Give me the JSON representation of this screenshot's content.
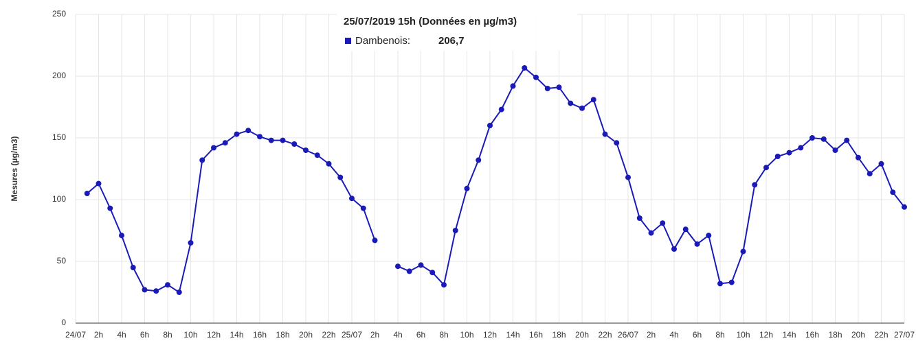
{
  "chart_data": {
    "type": "line",
    "y_label": "Mesures (µg/m3)",
    "x": [
      1,
      2,
      3,
      4,
      5,
      6,
      7,
      8,
      9,
      10,
      11,
      12,
      13,
      14,
      15,
      16,
      17,
      18,
      19,
      20,
      21,
      22,
      23,
      24,
      25,
      26,
      27,
      28,
      29,
      30,
      31,
      32,
      33,
      34,
      35,
      36,
      37,
      38,
      39,
      40,
      41,
      42,
      43,
      44,
      45,
      46,
      47,
      48,
      49,
      50,
      51,
      52,
      53,
      54,
      55,
      56,
      57,
      58,
      59,
      60,
      61,
      62,
      63,
      64,
      65,
      66,
      67,
      68,
      69,
      70,
      71,
      72
    ],
    "series": [
      {
        "name": "Dambenois",
        "color": "#1a1ab8",
        "values": [
          105,
          113,
          93,
          71,
          45,
          27,
          26,
          31,
          25,
          65,
          132,
          142,
          146,
          153,
          156,
          151,
          148,
          148,
          145,
          140,
          136,
          129,
          118,
          101,
          93,
          67,
          null,
          46,
          42,
          47,
          41,
          31,
          75,
          109,
          132,
          160,
          173,
          192,
          206.7,
          199,
          190,
          191,
          178,
          174,
          181,
          153,
          146,
          118,
          85,
          73,
          81,
          60,
          76,
          64,
          71,
          32,
          33,
          58,
          112,
          126,
          135,
          138,
          142,
          150,
          149,
          140,
          148,
          134,
          121,
          129,
          106,
          94
        ]
      }
    ],
    "xlim": [
      0,
      72
    ],
    "xticks": [
      {
        "value": 0,
        "label": "24/07"
      },
      {
        "value": 2,
        "label": "2h"
      },
      {
        "value": 4,
        "label": "4h"
      },
      {
        "value": 6,
        "label": "6h"
      },
      {
        "value": 8,
        "label": "8h"
      },
      {
        "value": 10,
        "label": "10h"
      },
      {
        "value": 12,
        "label": "12h"
      },
      {
        "value": 14,
        "label": "14h"
      },
      {
        "value": 16,
        "label": "16h"
      },
      {
        "value": 18,
        "label": "18h"
      },
      {
        "value": 20,
        "label": "20h"
      },
      {
        "value": 22,
        "label": "22h"
      },
      {
        "value": 24,
        "label": "25/07"
      },
      {
        "value": 26,
        "label": "2h"
      },
      {
        "value": 28,
        "label": "4h"
      },
      {
        "value": 30,
        "label": "6h"
      },
      {
        "value": 32,
        "label": "8h"
      },
      {
        "value": 34,
        "label": "10h"
      },
      {
        "value": 36,
        "label": "12h"
      },
      {
        "value": 38,
        "label": "14h"
      },
      {
        "value": 40,
        "label": "16h"
      },
      {
        "value": 42,
        "label": "18h"
      },
      {
        "value": 44,
        "label": "20h"
      },
      {
        "value": 46,
        "label": "22h"
      },
      {
        "value": 48,
        "label": "26/07"
      },
      {
        "value": 50,
        "label": "2h"
      },
      {
        "value": 52,
        "label": "4h"
      },
      {
        "value": 54,
        "label": "6h"
      },
      {
        "value": 56,
        "label": "8h"
      },
      {
        "value": 58,
        "label": "10h"
      },
      {
        "value": 60,
        "label": "12h"
      },
      {
        "value": 62,
        "label": "14h"
      },
      {
        "value": 64,
        "label": "16h"
      },
      {
        "value": 66,
        "label": "18h"
      },
      {
        "value": 68,
        "label": "20h"
      },
      {
        "value": 70,
        "label": "22h"
      },
      {
        "value": 72,
        "label": "27/07"
      }
    ],
    "ylim": [
      0,
      250
    ],
    "yticks": [
      0,
      50,
      100,
      150,
      200,
      250
    ],
    "grid": true,
    "tooltip": {
      "title": "25/07/2019 15h (Données en µg/m3)",
      "series_label": "Dambenois:",
      "value_label": "206,7"
    }
  }
}
